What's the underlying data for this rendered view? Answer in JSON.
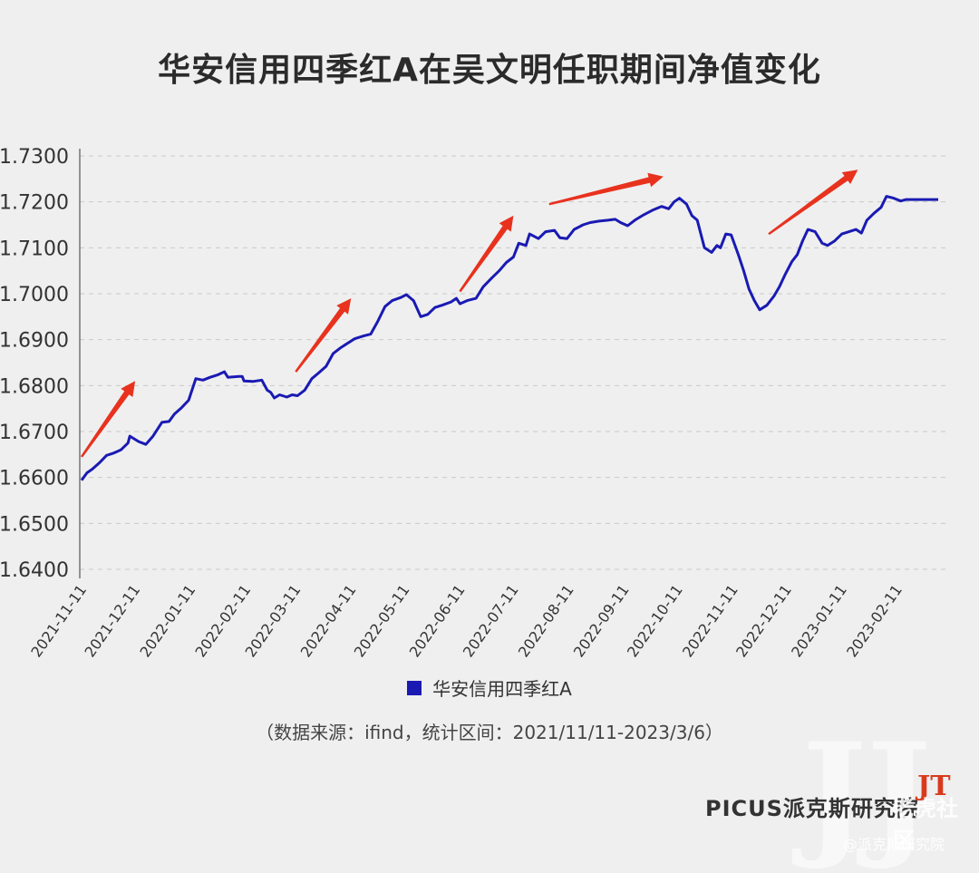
{
  "page": {
    "title": "华安信用四季红A在吴文明任职期间净值变化",
    "legend_label": "华安信用四季红A",
    "source": "（数据来源：ifind，统计区间：2021/11/11-2023/3/6）",
    "brand": "PICUS派克斯研究院",
    "watermark_text": "老虎社区",
    "watermark_sub": "@派克斯研究院"
  },
  "colors": {
    "series": "#1a1ab3",
    "arrow": "#e8321e",
    "grid": "#c9c9c9",
    "axis": "#555555"
  },
  "chart_data": {
    "type": "line",
    "title": "华安信用四季红A在吴文明任职期间净值变化",
    "ylim": [
      1.64,
      1.73
    ],
    "y_ticks": [
      "1.6400",
      "1.6500",
      "1.6600",
      "1.6700",
      "1.6800",
      "1.6900",
      "1.7000",
      "1.7100",
      "1.7200",
      "1.7300"
    ],
    "x_ticks": [
      "2021-11-11",
      "2021-12-11",
      "2022-01-11",
      "2022-02-11",
      "2022-03-11",
      "2022-04-11",
      "2022-05-11",
      "2022-06-11",
      "2022-07-11",
      "2022-08-11",
      "2022-09-11",
      "2022-10-11",
      "2022-11-11",
      "2022-12-11",
      "2023-01-11",
      "2023-02-11"
    ],
    "xlim": [
      "2021-11-11",
      "2023-03-06"
    ],
    "grid": true,
    "legend": "bottom",
    "series": [
      {
        "name": "华安信用四季红A",
        "points": [
          [
            "2021-11-11",
            1.6594
          ],
          [
            "2021-11-14",
            1.661
          ],
          [
            "2021-11-17",
            1.6618
          ],
          [
            "2021-11-21",
            1.6632
          ],
          [
            "2021-11-25",
            1.6648
          ],
          [
            "2021-11-29",
            1.6653
          ],
          [
            "2021-12-03",
            1.666
          ],
          [
            "2021-12-07",
            1.6675
          ],
          [
            "2021-12-08",
            1.669
          ],
          [
            "2021-12-13",
            1.6678
          ],
          [
            "2021-12-17",
            1.6672
          ],
          [
            "2021-12-21",
            1.669
          ],
          [
            "2021-12-26",
            1.672
          ],
          [
            "2021-12-30",
            1.6722
          ],
          [
            "2022-01-02",
            1.6738
          ],
          [
            "2022-01-06",
            1.6752
          ],
          [
            "2022-01-10",
            1.6768
          ],
          [
            "2022-01-14",
            1.6815
          ],
          [
            "2022-01-18",
            1.6812
          ],
          [
            "2022-01-22",
            1.6818
          ],
          [
            "2022-01-26",
            1.6823
          ],
          [
            "2022-01-30",
            1.683
          ],
          [
            "2022-02-01",
            1.6818
          ],
          [
            "2022-02-07",
            1.682
          ],
          [
            "2022-02-09",
            1.682
          ],
          [
            "2022-02-10",
            1.681
          ],
          [
            "2022-02-15",
            1.6809
          ],
          [
            "2022-02-20",
            1.6812
          ],
          [
            "2022-02-23",
            1.679
          ],
          [
            "2022-02-25",
            1.6785
          ],
          [
            "2022-02-27",
            1.6773
          ],
          [
            "2022-03-02",
            1.678
          ],
          [
            "2022-03-06",
            1.6775
          ],
          [
            "2022-03-09",
            1.678
          ],
          [
            "2022-03-12",
            1.6778
          ],
          [
            "2022-03-16",
            1.679
          ],
          [
            "2022-03-20",
            1.6815
          ],
          [
            "2022-03-24",
            1.6828
          ],
          [
            "2022-03-28",
            1.6842
          ],
          [
            "2022-04-01",
            1.687
          ],
          [
            "2022-04-05",
            1.6882
          ],
          [
            "2022-04-09",
            1.6892
          ],
          [
            "2022-04-13",
            1.6902
          ],
          [
            "2022-04-18",
            1.6908
          ],
          [
            "2022-04-22",
            1.6912
          ],
          [
            "2022-04-26",
            1.694
          ],
          [
            "2022-04-30",
            1.6972
          ],
          [
            "2022-05-04",
            1.6985
          ],
          [
            "2022-05-09",
            1.6992
          ],
          [
            "2022-05-12",
            1.6998
          ],
          [
            "2022-05-16",
            1.6985
          ],
          [
            "2022-05-20",
            1.695
          ],
          [
            "2022-05-24",
            1.6955
          ],
          [
            "2022-05-28",
            1.697
          ],
          [
            "2022-06-01",
            1.6975
          ],
          [
            "2022-06-06",
            1.6982
          ],
          [
            "2022-06-09",
            1.699
          ],
          [
            "2022-06-11",
            1.6978
          ],
          [
            "2022-06-15",
            1.6985
          ],
          [
            "2022-06-20",
            1.699
          ],
          [
            "2022-06-24",
            1.7015
          ],
          [
            "2022-06-29",
            1.7035
          ],
          [
            "2022-07-03",
            1.705
          ],
          [
            "2022-07-07",
            1.7068
          ],
          [
            "2022-07-11",
            1.708
          ],
          [
            "2022-07-14",
            1.711
          ],
          [
            "2022-07-18",
            1.7105
          ],
          [
            "2022-07-20",
            1.713
          ],
          [
            "2022-07-25",
            1.712
          ],
          [
            "2022-07-29",
            1.7135
          ],
          [
            "2022-08-03",
            1.7138
          ],
          [
            "2022-08-06",
            1.7122
          ],
          [
            "2022-08-10",
            1.712
          ],
          [
            "2022-08-14",
            1.714
          ],
          [
            "2022-08-19",
            1.715
          ],
          [
            "2022-08-23",
            1.7155
          ],
          [
            "2022-08-28",
            1.7158
          ],
          [
            "2022-09-02",
            1.716
          ],
          [
            "2022-09-06",
            1.7162
          ],
          [
            "2022-09-09",
            1.7155
          ],
          [
            "2022-09-13",
            1.7148
          ],
          [
            "2022-09-17",
            1.716
          ],
          [
            "2022-09-22",
            1.7172
          ],
          [
            "2022-09-27",
            1.7182
          ],
          [
            "2022-10-02",
            1.719
          ],
          [
            "2022-10-06",
            1.7185
          ],
          [
            "2022-10-09",
            1.72
          ],
          [
            "2022-10-12",
            1.7208
          ],
          [
            "2022-10-16",
            1.7195
          ],
          [
            "2022-10-19",
            1.717
          ],
          [
            "2022-10-22",
            1.716
          ],
          [
            "2022-10-26",
            1.71
          ],
          [
            "2022-10-30",
            1.709
          ],
          [
            "2022-11-02",
            1.7105
          ],
          [
            "2022-11-04",
            1.71
          ],
          [
            "2022-11-07",
            1.713
          ],
          [
            "2022-11-10",
            1.7128
          ],
          [
            "2022-11-14",
            1.7085
          ],
          [
            "2022-11-17",
            1.705
          ],
          [
            "2022-11-20",
            1.701
          ],
          [
            "2022-11-23",
            1.6985
          ],
          [
            "2022-11-26",
            1.6965
          ],
          [
            "2022-11-30",
            1.6975
          ],
          [
            "2022-12-04",
            1.6995
          ],
          [
            "2022-12-07",
            1.7015
          ],
          [
            "2022-12-10",
            1.704
          ],
          [
            "2022-12-14",
            1.707
          ],
          [
            "2022-12-17",
            1.7085
          ],
          [
            "2022-12-20",
            1.7115
          ],
          [
            "2022-12-23",
            1.714
          ],
          [
            "2022-12-27",
            1.7135
          ],
          [
            "2022-12-31",
            1.711
          ],
          [
            "2023-01-03",
            1.7105
          ],
          [
            "2023-01-07",
            1.7115
          ],
          [
            "2023-01-11",
            1.713
          ],
          [
            "2023-01-15",
            1.7135
          ],
          [
            "2023-01-19",
            1.714
          ],
          [
            "2023-01-22",
            1.7132
          ],
          [
            "2023-01-25",
            1.716
          ],
          [
            "2023-01-29",
            1.7175
          ],
          [
            "2023-02-02",
            1.7188
          ],
          [
            "2023-02-05",
            1.7212
          ],
          [
            "2023-02-09",
            1.7208
          ],
          [
            "2023-02-13",
            1.7202
          ],
          [
            "2023-02-16",
            1.7205
          ],
          [
            "2023-02-20",
            1.7205
          ],
          [
            "2023-03-06",
            1.7205
          ]
        ]
      }
    ],
    "annotations": [
      {
        "type": "arrow",
        "from": [
          "2021-11-11",
          1.6645
        ],
        "to": [
          "2021-12-11",
          1.681
        ]
      },
      {
        "type": "arrow",
        "from": [
          "2022-03-11",
          1.683
        ],
        "to": [
          "2022-04-11",
          1.699
        ]
      },
      {
        "type": "arrow",
        "from": [
          "2022-06-11",
          1.7005
        ],
        "to": [
          "2022-07-11",
          1.717
        ]
      },
      {
        "type": "arrow",
        "from": [
          "2022-07-31",
          1.7195
        ],
        "to": [
          "2022-10-03",
          1.7255
        ]
      },
      {
        "type": "arrow",
        "from": [
          "2022-12-01",
          1.713
        ],
        "to": [
          "2023-01-20",
          1.727
        ]
      }
    ]
  }
}
